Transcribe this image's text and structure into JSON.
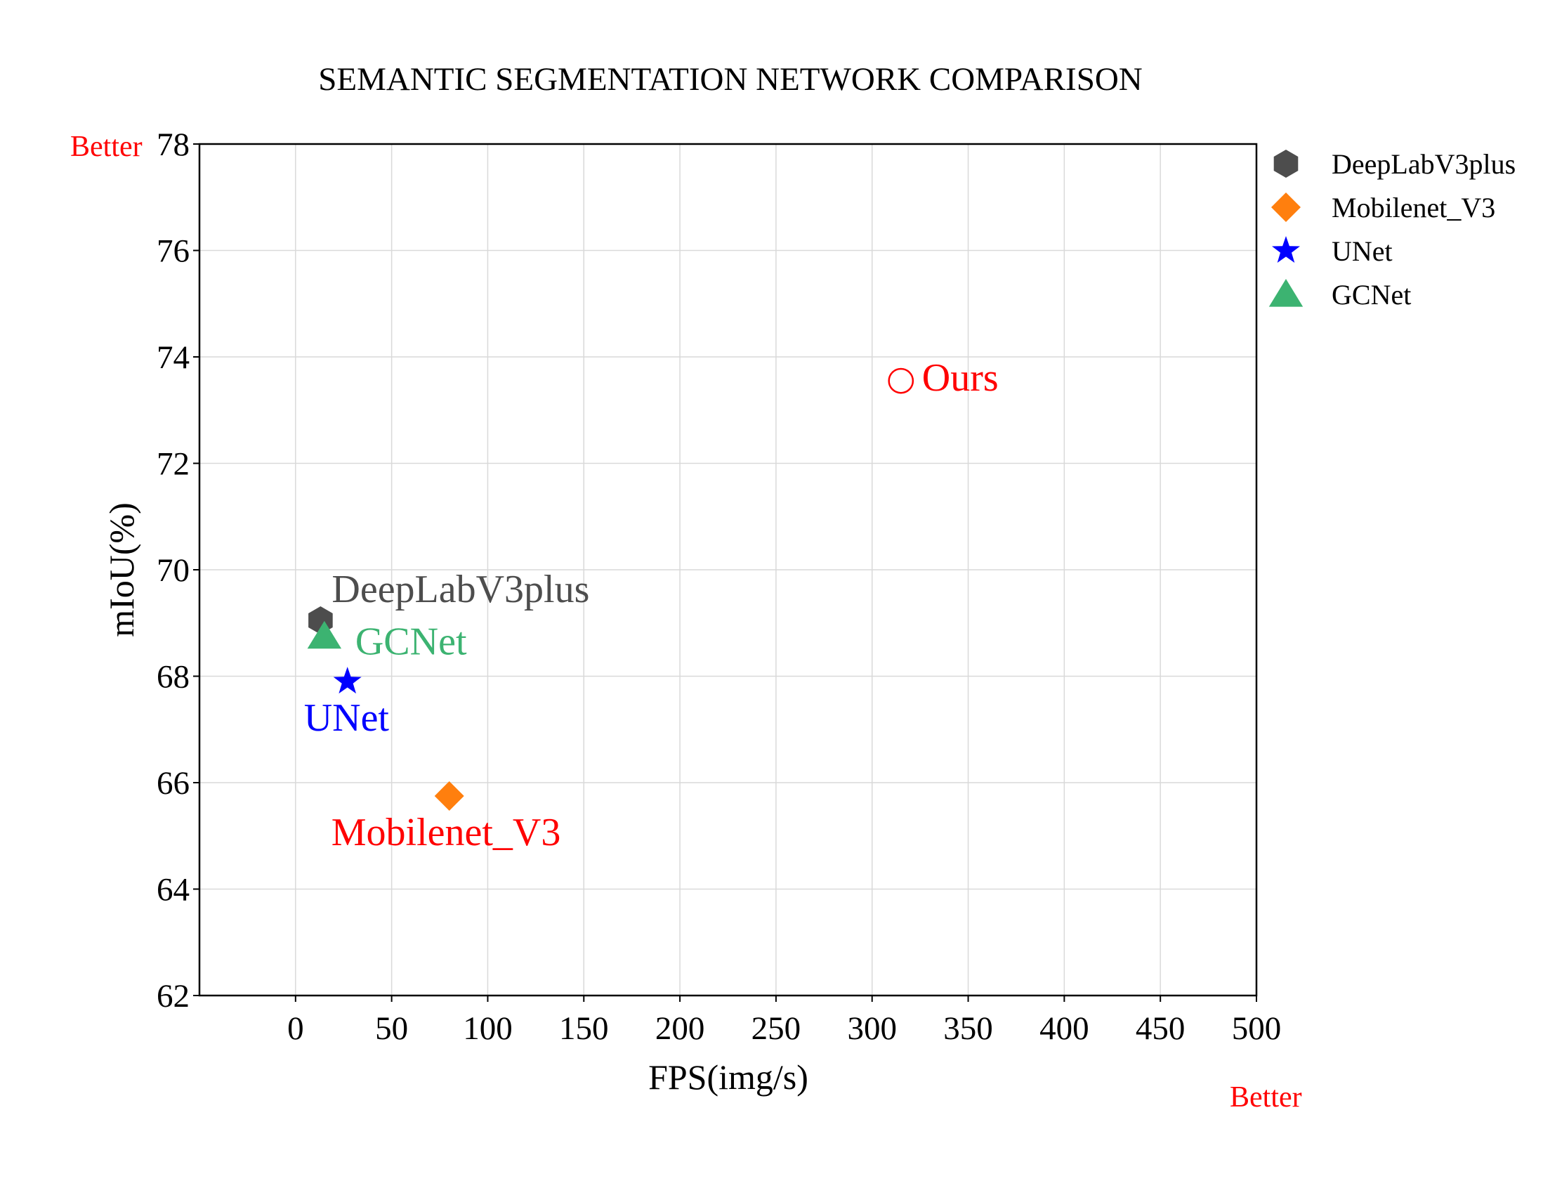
{
  "chart_data": {
    "type": "scatter",
    "title": "SEMANTIC SEGMENTATION NETWORK COMPARISON",
    "xlabel": "FPS(img/s)",
    "ylabel": "mIoU(%)",
    "xlim": [
      -50,
      500
    ],
    "ylim": [
      62,
      78
    ],
    "xticks": [
      0,
      50,
      100,
      150,
      200,
      250,
      300,
      350,
      400,
      450,
      500
    ],
    "yticks": [
      62,
      64,
      66,
      68,
      70,
      72,
      74,
      76,
      78
    ],
    "grid": true,
    "legend_position": "right",
    "series": [
      {
        "name": "DeepLabV3plus",
        "marker": "hexagon",
        "color": "#4d4d4d",
        "label_color": "#4d4d4d",
        "points": [
          {
            "x": 13,
            "y": 69.05
          }
        ],
        "annotation": "DeepLabV3plus"
      },
      {
        "name": "Mobilenet_V3",
        "marker": "diamond",
        "color": "#ff7f0e",
        "label_color": "#ff0000",
        "points": [
          {
            "x": 80,
            "y": 65.75
          }
        ],
        "annotation": "Mobilenet_V3"
      },
      {
        "name": "UNet",
        "marker": "star",
        "color": "#0000ff",
        "label_color": "#0000ff",
        "points": [
          {
            "x": 27,
            "y": 67.9
          }
        ],
        "annotation": "UNet"
      },
      {
        "name": "GCNet",
        "marker": "triangle",
        "color": "#3cb371",
        "label_color": "#3cb371",
        "points": [
          {
            "x": 15,
            "y": 68.75
          }
        ],
        "annotation": "GCNet"
      }
    ],
    "extra_points": [
      {
        "annotation": "Ours",
        "marker": "open-circle",
        "color": "#ff0000",
        "x": 315,
        "y": 73.55
      }
    ],
    "corner_labels": {
      "top_left": "Better",
      "bottom_right": "Better",
      "color": "#ff0000"
    }
  }
}
